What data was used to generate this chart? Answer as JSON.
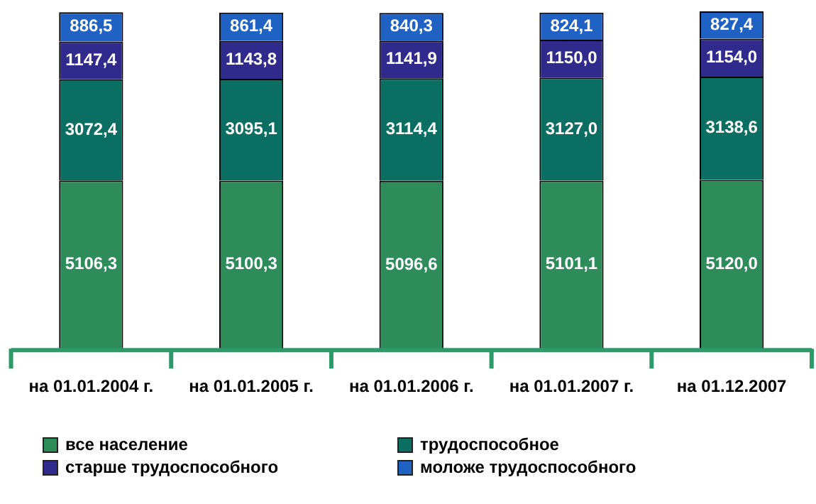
{
  "chart_data": {
    "type": "bar",
    "stacked": true,
    "legend": "bottom",
    "grid": false,
    "categories": [
      "на 01.01.2004 г.",
      "на 01.01.2005 г.",
      "на 01.01.2006 г.",
      "на 01.01.2007 г.",
      "на 01.12.2007"
    ],
    "series": [
      {
        "name": "все население",
        "color": "#2e8b5a",
        "values": [
          5106.3,
          5100.3,
          5096.6,
          5101.1,
          5120.0
        ],
        "value_labels": [
          "5106,3",
          "5100,3",
          "5096,6",
          "5101,1",
          "5120,0"
        ]
      },
      {
        "name": "трудоспособное",
        "color": "#0b6e62",
        "values": [
          3072.4,
          3095.1,
          3114.4,
          3127.0,
          3138.6
        ],
        "value_labels": [
          "3072,4",
          "3095,1",
          "3114,4",
          "3127,0",
          "3138,6"
        ]
      },
      {
        "name": "старше трудоспособного",
        "color": "#2f2a8c",
        "values": [
          1147.4,
          1143.8,
          1141.9,
          1150.0,
          1154.0
        ],
        "value_labels": [
          "1147,4",
          "1143,8",
          "1141,9",
          "1150,0",
          "1154,0"
        ]
      },
      {
        "name": "моложе трудоспособного",
        "color": "#1f62c4",
        "values": [
          886.5,
          861.4,
          840.3,
          824.1,
          827.4
        ],
        "value_labels": [
          "886,5",
          "861,4",
          "840,3",
          "824,1",
          "827,4"
        ]
      }
    ]
  }
}
